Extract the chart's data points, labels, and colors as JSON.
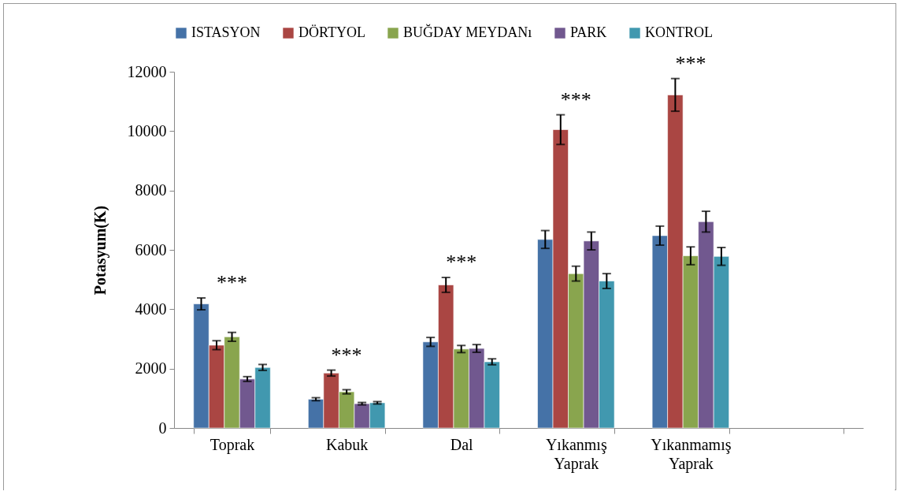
{
  "chart_data": {
    "type": "bar",
    "ylabel": "Potasyum(K)",
    "categories": [
      "Toprak",
      "Kabuk",
      "Dal",
      "Yıkanmış Yaprak",
      "Yıkanmamış Yaprak",
      null
    ],
    "series": [
      {
        "name": "ISTASYON",
        "color": "#4572a7",
        "values": [
          4180,
          970,
          2900,
          6350,
          6480,
          null
        ],
        "errors": [
          200,
          50,
          150,
          300,
          320,
          null
        ]
      },
      {
        "name": "DÖRTYOL",
        "color": "#aa4643",
        "values": [
          2790,
          1850,
          4820,
          10050,
          11220,
          null
        ],
        "errors": [
          150,
          100,
          250,
          500,
          550,
          null
        ]
      },
      {
        "name": "BUĞDAY MEYDANı",
        "color": "#89a54e",
        "values": [
          3070,
          1220,
          2660,
          5200,
          5800,
          null
        ],
        "errors": [
          150,
          70,
          120,
          250,
          300,
          null
        ]
      },
      {
        "name": "PARK",
        "color": "#71588f",
        "values": [
          1650,
          820,
          2680,
          6300,
          6950,
          null
        ],
        "errors": [
          80,
          40,
          130,
          300,
          350,
          null
        ]
      },
      {
        "name": "KONTROL",
        "color": "#4198af",
        "values": [
          2040,
          850,
          2230,
          4950,
          5780,
          null
        ],
        "errors": [
          100,
          40,
          100,
          250,
          300,
          null
        ]
      }
    ],
    "ylim": [
      0,
      12000
    ],
    "yticks": [
      0,
      2000,
      4000,
      6000,
      8000,
      10000,
      12000
    ],
    "grid": false,
    "legend": "top",
    "annotations": [
      "***",
      "***",
      "***",
      "***",
      "***"
    ]
  }
}
